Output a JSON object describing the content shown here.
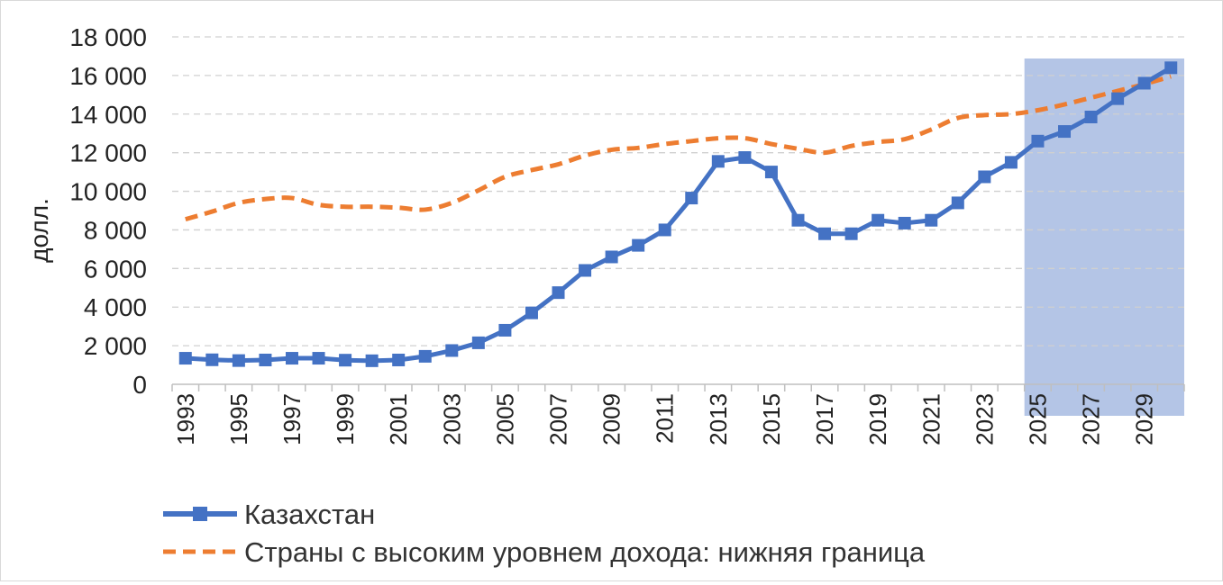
{
  "chart_data": {
    "type": "line",
    "ylabel": "долл.",
    "xlabel": "",
    "ylim": [
      0,
      18000
    ],
    "yticks": [
      0,
      2000,
      4000,
      6000,
      8000,
      10000,
      12000,
      14000,
      16000,
      18000
    ],
    "ytick_labels": [
      "0",
      "2 000",
      "4 000",
      "6 000",
      "8 000",
      "10 000",
      "12 000",
      "14 000",
      "16 000",
      "18 000"
    ],
    "x": [
      1993,
      1994,
      1995,
      1996,
      1997,
      1998,
      1999,
      2000,
      2001,
      2002,
      2003,
      2004,
      2005,
      2006,
      2007,
      2008,
      2009,
      2010,
      2011,
      2012,
      2013,
      2014,
      2015,
      2016,
      2017,
      2018,
      2019,
      2020,
      2021,
      2022,
      2023,
      2024,
      2025,
      2026,
      2027,
      2028,
      2029,
      2030
    ],
    "xtick_labels": [
      "1993",
      "1995",
      "1997",
      "1999",
      "2001",
      "2003",
      "2005",
      "2007",
      "2009",
      "2011",
      "2013",
      "2015",
      "2017",
      "2019",
      "2021",
      "2023",
      "2025",
      "2027",
      "2029"
    ],
    "grid": true,
    "legend_position": "bottom",
    "highlight_range": [
      2024.5,
      2030.5
    ],
    "highlight_color": "#b4c5e6",
    "series": [
      {
        "name": "Казахстан",
        "color": "#4472c4",
        "style": "solid-square-markers",
        "values": [
          1350,
          1270,
          1230,
          1260,
          1350,
          1350,
          1250,
          1220,
          1260,
          1450,
          1750,
          2150,
          2800,
          3700,
          4750,
          5900,
          6600,
          7200,
          8000,
          9650,
          11550,
          11750,
          11000,
          8500,
          7800,
          7800,
          8500,
          8350,
          8500,
          9400,
          10750,
          11500,
          12600,
          13100,
          13850,
          14800,
          15600,
          16400
        ]
      },
      {
        "name": "Страны с высоким уровнем дохода: нижняя граница",
        "color": "#ed7d31",
        "style": "dashed",
        "values": [
          8550,
          8950,
          9400,
          9600,
          9650,
          9300,
          9200,
          9200,
          9150,
          9050,
          9400,
          10050,
          10750,
          11100,
          11400,
          11850,
          12150,
          12250,
          12450,
          12600,
          12750,
          12750,
          12450,
          12200,
          12000,
          12350,
          12550,
          12700,
          13200,
          13800,
          13950,
          14000,
          14200,
          14500,
          14850,
          15200,
          15550,
          15950
        ]
      }
    ]
  }
}
